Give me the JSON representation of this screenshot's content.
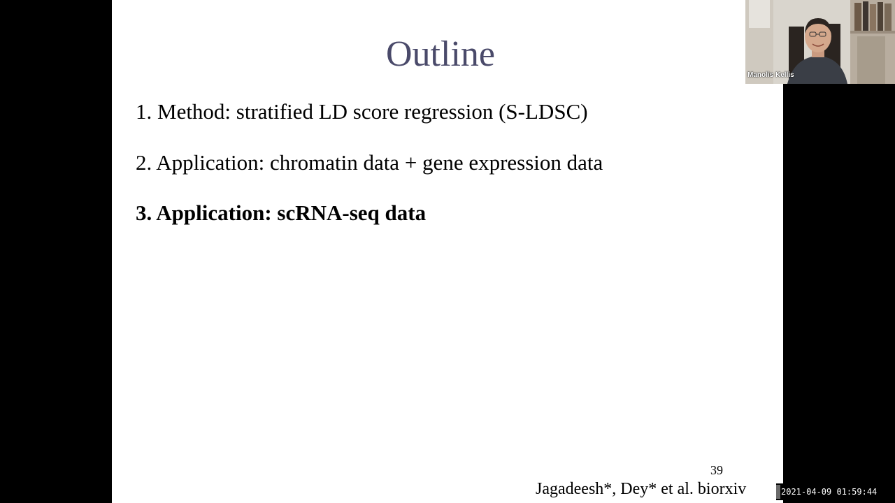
{
  "slide": {
    "title": "Outline",
    "items": [
      "1. Method: stratified LD score regression (S-LDSC)",
      "2. Application: chromatin data + gene expression data",
      "3. Application: scRNA-seq data"
    ],
    "page_number": "39",
    "citation": "Jagadeesh*, Dey* et al. biorxiv"
  },
  "webcam": {
    "participant_name": "Manolis Kellis"
  },
  "overlay": {
    "timestamp": "2021-04-09 01:59:44"
  },
  "colors": {
    "title": "#4a4a6a",
    "background": "#000000",
    "slide_background": "#ffffff"
  }
}
